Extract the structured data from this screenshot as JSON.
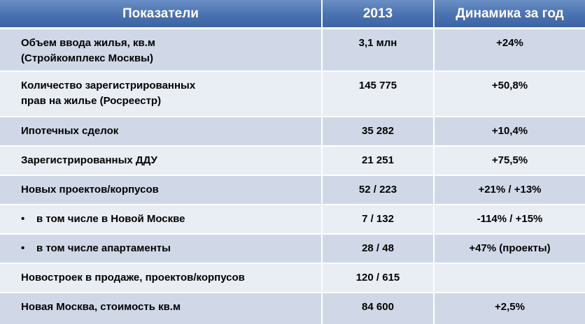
{
  "table": {
    "headers": [
      "Показатели",
      "2013",
      "Динамика за год"
    ],
    "rows": [
      {
        "label_lines": [
          "Объем ввода жилья, кв.м",
          "(Стройкомплекс Москвы)"
        ],
        "value": "3,1 млн",
        "change": "+24%"
      },
      {
        "label_lines": [
          "Количество зарегистрированных",
          "прав на жилье (Росреестр)"
        ],
        "value": "145 775",
        "change": "+50,8%"
      },
      {
        "label": "Ипотечных сделок",
        "value": "35 282",
        "change": "+10,4%"
      },
      {
        "label": "Зарегистрированных ДДУ",
        "value": "21 251",
        "change": "+75,5%"
      },
      {
        "label": "Новых проектов/корпусов",
        "value": "52 / 223",
        "change": "+21% / +13%"
      },
      {
        "bullet": "•",
        "label": "в том числе в Новой Москве",
        "value": "7 / 132",
        "change": "-114% / +15%"
      },
      {
        "bullet": "•",
        "label": "в том числе апартаменты",
        "value": "28 / 48",
        "change": "+47% (проекты)"
      },
      {
        "label": "Новостроек в продаже, проектов/корпусов",
        "value": "120 / 615",
        "change": ""
      },
      {
        "label": "Новая Москва, стоимость кв.м",
        "value": "84 600",
        "change": "+2,5%"
      }
    ]
  },
  "colors": {
    "header_bg": "#4a71b0",
    "row_dark": "#d0d8e8",
    "row_light": "#e9edf4"
  }
}
